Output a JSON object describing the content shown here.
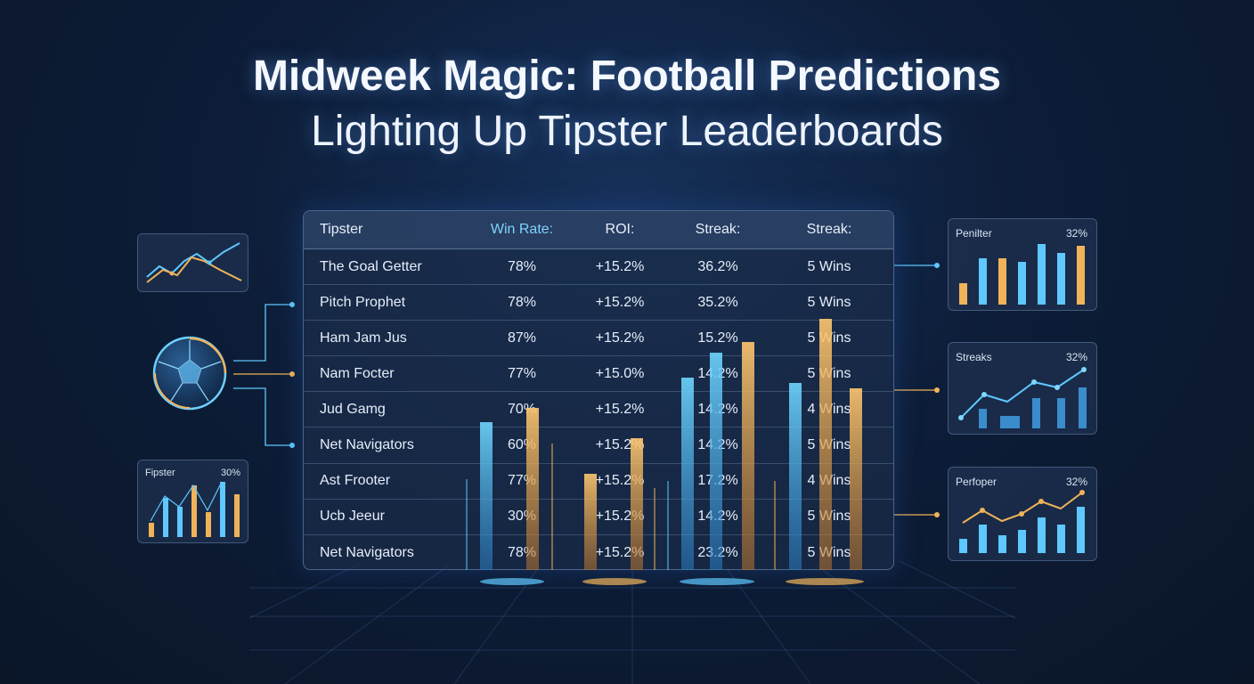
{
  "title": {
    "line1": "Midweek Magic: Football Predictions",
    "line2": "Lighting Up Tipster Leaderboards"
  },
  "colors": {
    "blue": "#5ec8ff",
    "orange": "#f0b35a",
    "bg": "#0d1d38"
  },
  "icons": [
    "soccer-ball-icon"
  ],
  "leaderboard": {
    "headers": [
      "Tipster",
      "Win Rate:",
      "ROI:",
      "Streak:",
      "Streak:"
    ],
    "rows": [
      [
        "The Goal Getter",
        "78%",
        "+15.2%",
        "36.2%",
        "5 Wins"
      ],
      [
        "Pitch Prophet",
        "78%",
        "+15.2%",
        "35.2%",
        "5 Wins"
      ],
      [
        "Ham Jam Jus",
        "87%",
        "+15.2%",
        "15.2%",
        "5 Wins"
      ],
      [
        "Nam Focter",
        "77%",
        "+15.0%",
        "14.2%",
        "5 Wins"
      ],
      [
        "Jud Gamg",
        "70%",
        "+15.2%",
        "14.2%",
        "4 Wins"
      ],
      [
        "Net Navigators",
        "60%",
        "+15.2%",
        "14.2%",
        "5 Wins"
      ],
      [
        "Ast Frooter",
        "77%",
        "+15.2%",
        "17.2%",
        "4 Wins"
      ],
      [
        "Ucb Jeeur",
        "30%",
        "+15.2%",
        "14.2%",
        "5 Wins"
      ],
      [
        "Net Navigators",
        "78%",
        "+15.2%",
        "23.2%",
        "5 Wins"
      ]
    ]
  },
  "panels": {
    "left_bottom": {
      "label": "Fipster",
      "value": "30%"
    },
    "right_top": {
      "label": "Penilter",
      "value": "32%"
    },
    "right_mid": {
      "label": "Streaks",
      "value": "32%"
    },
    "right_bottom": {
      "label": "Perfoper",
      "value": "32%"
    }
  }
}
